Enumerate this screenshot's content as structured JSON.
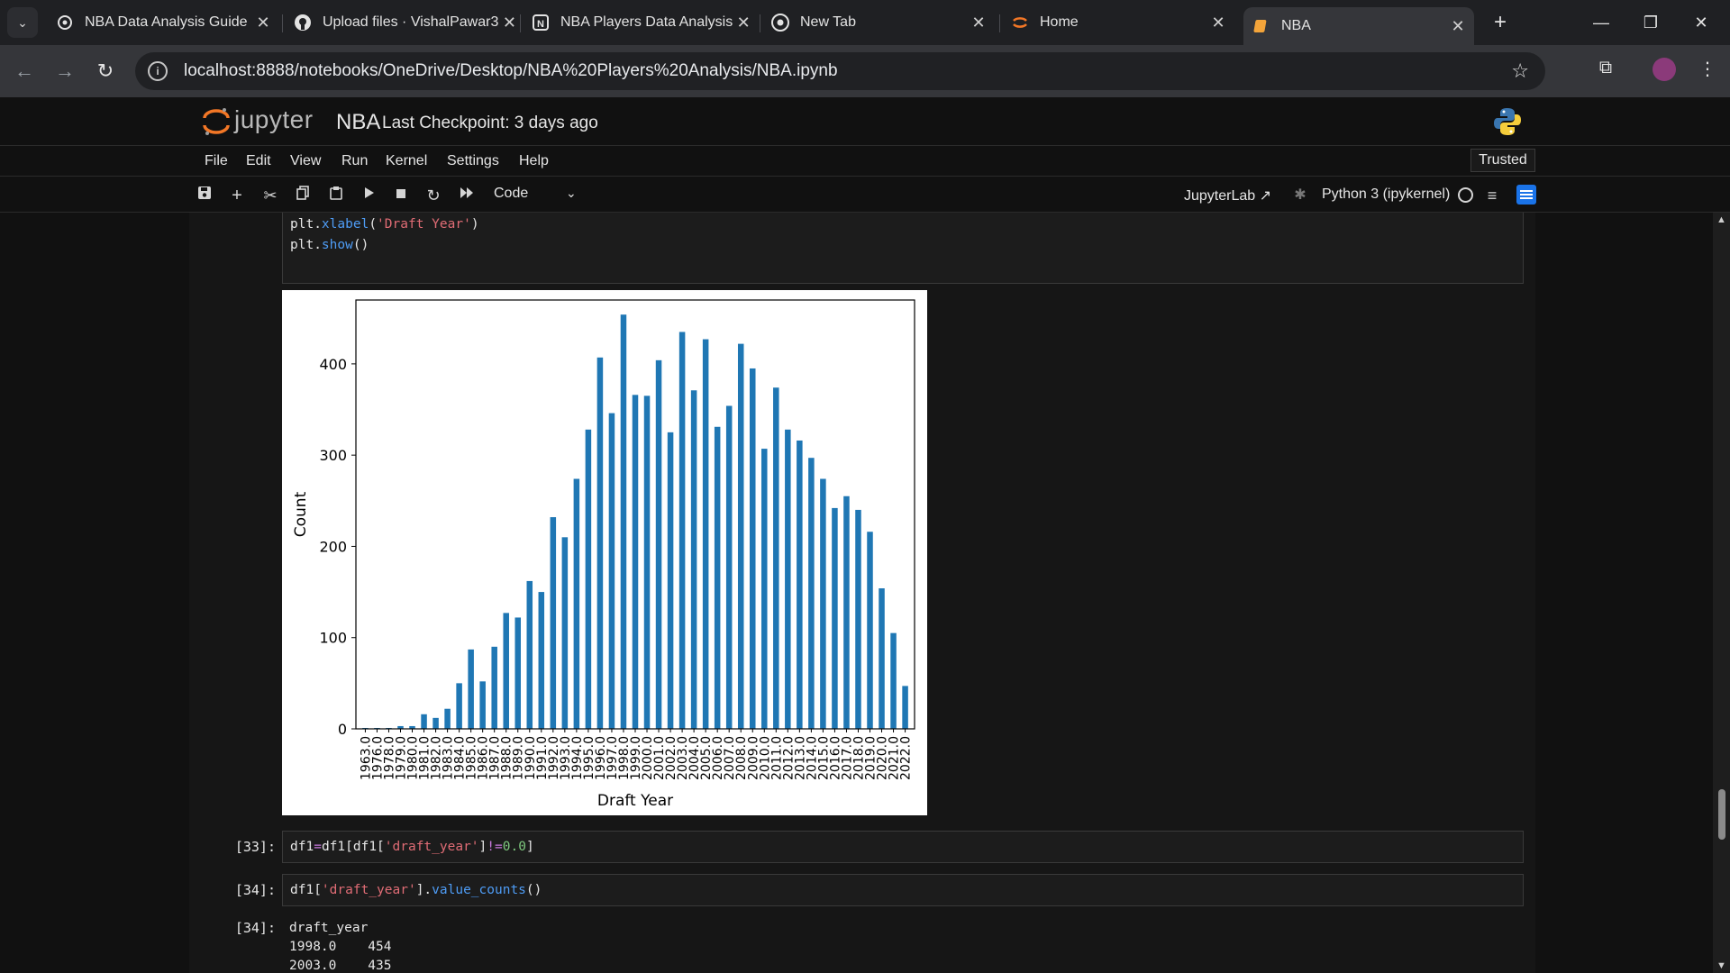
{
  "browser": {
    "tabs": [
      {
        "label": "NBA Data Analysis Guide",
        "icon": "openai-icon"
      },
      {
        "label": "Upload files · VishalPawar3",
        "icon": "github-icon"
      },
      {
        "label": "NBA Players Data Analysis",
        "icon": "notion-icon"
      },
      {
        "label": "New Tab",
        "icon": "chrome-icon"
      },
      {
        "label": "Home",
        "icon": "jupyter-icon"
      },
      {
        "label": "NBA",
        "icon": "notebook-icon"
      }
    ],
    "active_tab": 5,
    "url": "localhost:8888/notebooks/OneDrive/Desktop/NBA%20Players%20Analysis/NBA.ipynb"
  },
  "jupyter": {
    "logo_text": "jupyter",
    "notebook_name": "NBA",
    "checkpoint": "Last Checkpoint: 3 days ago",
    "menu": [
      "File",
      "Edit",
      "View",
      "Run",
      "Kernel",
      "Settings",
      "Help"
    ],
    "trusted": "Trusted",
    "cell_type": "Code",
    "jupyterlab_link": "JupyterLab",
    "kernel": "Python 3 (ipykernel)"
  },
  "cells": {
    "prev_code": {
      "line1": {
        "obj": "plt.",
        "fn": "xlabel",
        "open": "(",
        "str": "'Draft Year'",
        "close": ")"
      },
      "line2": {
        "obj": "plt.",
        "fn": "show",
        "rest": "()"
      }
    },
    "cell33": {
      "prompt": "[33]:",
      "parts": {
        "a": "df1",
        "eq": "=",
        "b": "df1[df1[",
        "str": "'draft_year'",
        "c": "]",
        "op": "!=",
        "num": "0.0",
        "d": "]"
      }
    },
    "cell34": {
      "prompt": "[34]:",
      "parts": {
        "a": "df1[",
        "str": "'draft_year'",
        "b": "].",
        "fn": "value_counts",
        "c": "()"
      }
    },
    "out34": {
      "prompt": "[34]:",
      "lines": [
        "draft_year",
        "1998.0    454",
        "2003.0    435"
      ]
    }
  },
  "chart_data": {
    "type": "bar",
    "title": "",
    "xlabel": "Draft Year",
    "ylabel": "Count",
    "ylim": [
      0,
      470
    ],
    "yticks": [
      0,
      100,
      200,
      300,
      400
    ],
    "grid": false,
    "bar_color": "#1f77b4",
    "categories": [
      "1963.0",
      "1976.0",
      "1978.0",
      "1979.0",
      "1980.0",
      "1981.0",
      "1982.0",
      "1983.0",
      "1984.0",
      "1985.0",
      "1986.0",
      "1987.0",
      "1988.0",
      "1989.0",
      "1990.0",
      "1991.0",
      "1992.0",
      "1993.0",
      "1994.0",
      "1995.0",
      "1996.0",
      "1997.0",
      "1998.0",
      "1999.0",
      "2000.0",
      "2001.0",
      "2002.0",
      "2003.0",
      "2004.0",
      "2005.0",
      "2006.0",
      "2007.0",
      "2008.0",
      "2009.0",
      "2010.0",
      "2011.0",
      "2012.0",
      "2013.0",
      "2014.0",
      "2015.0",
      "2016.0",
      "2017.0",
      "2018.0",
      "2019.0",
      "2020.0",
      "2021.0",
      "2022.0"
    ],
    "values": [
      1,
      1,
      1,
      3,
      3,
      16,
      12,
      22,
      50,
      87,
      52,
      90,
      127,
      122,
      162,
      150,
      232,
      210,
      274,
      328,
      407,
      346,
      454,
      366,
      365,
      404,
      325,
      435,
      371,
      427,
      331,
      354,
      422,
      395,
      307,
      374,
      328,
      316,
      297,
      274,
      242,
      255,
      240,
      216,
      154,
      105,
      47
    ]
  }
}
